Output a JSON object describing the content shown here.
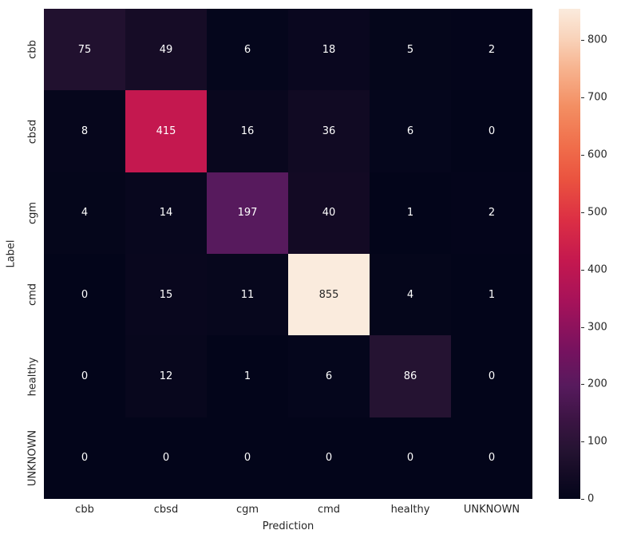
{
  "chart_data": {
    "type": "heatmap",
    "title": "",
    "xlabel": "Prediction",
    "ylabel": "Label",
    "x_categories": [
      "cbb",
      "cbsd",
      "cgm",
      "cmd",
      "healthy",
      "UNKNOWN"
    ],
    "y_categories": [
      "cbb",
      "cbsd",
      "cgm",
      "cmd",
      "healthy",
      "UNKNOWN"
    ],
    "values": [
      [
        75,
        49,
        6,
        18,
        5,
        2
      ],
      [
        8,
        415,
        16,
        36,
        6,
        0
      ],
      [
        4,
        14,
        197,
        40,
        1,
        2
      ],
      [
        0,
        15,
        11,
        855,
        4,
        1
      ],
      [
        0,
        12,
        1,
        6,
        86,
        0
      ],
      [
        0,
        0,
        0,
        0,
        0,
        0
      ]
    ],
    "vmin": 0,
    "vmax": 855,
    "colormap": "rocket",
    "colormap_stops": [
      {
        "t": 0.0,
        "color": "#03051A"
      },
      {
        "t": 0.06,
        "color": "#170C27"
      },
      {
        "t": 0.1,
        "color": "#251332"
      },
      {
        "t": 0.16,
        "color": "#3B1443"
      },
      {
        "t": 0.23,
        "color": "#571A5D"
      },
      {
        "t": 0.3,
        "color": "#75125F"
      },
      {
        "t": 0.4,
        "color": "#A5125A"
      },
      {
        "t": 0.485,
        "color": "#C4184F"
      },
      {
        "t": 0.57,
        "color": "#DC2F44"
      },
      {
        "t": 0.65,
        "color": "#EA523F"
      },
      {
        "t": 0.72,
        "color": "#F06E4B"
      },
      {
        "t": 0.8,
        "color": "#F38E62"
      },
      {
        "t": 0.88,
        "color": "#F7B490"
      },
      {
        "t": 0.94,
        "color": "#F9D3BA"
      },
      {
        "t": 1.0,
        "color": "#FAEBDD"
      }
    ],
    "annotation_colors": {
      "light_text": "#FFFFFF",
      "dark_text": "#262626",
      "dark_text_threshold": 0.8
    },
    "colorbar": {
      "tick_values": [
        0,
        100,
        200,
        300,
        400,
        500,
        600,
        700,
        800
      ],
      "tick_labels": [
        "0",
        "100",
        "200",
        "300",
        "400",
        "500",
        "600",
        "700",
        "800"
      ]
    },
    "grid": false,
    "legend_position": "none"
  }
}
